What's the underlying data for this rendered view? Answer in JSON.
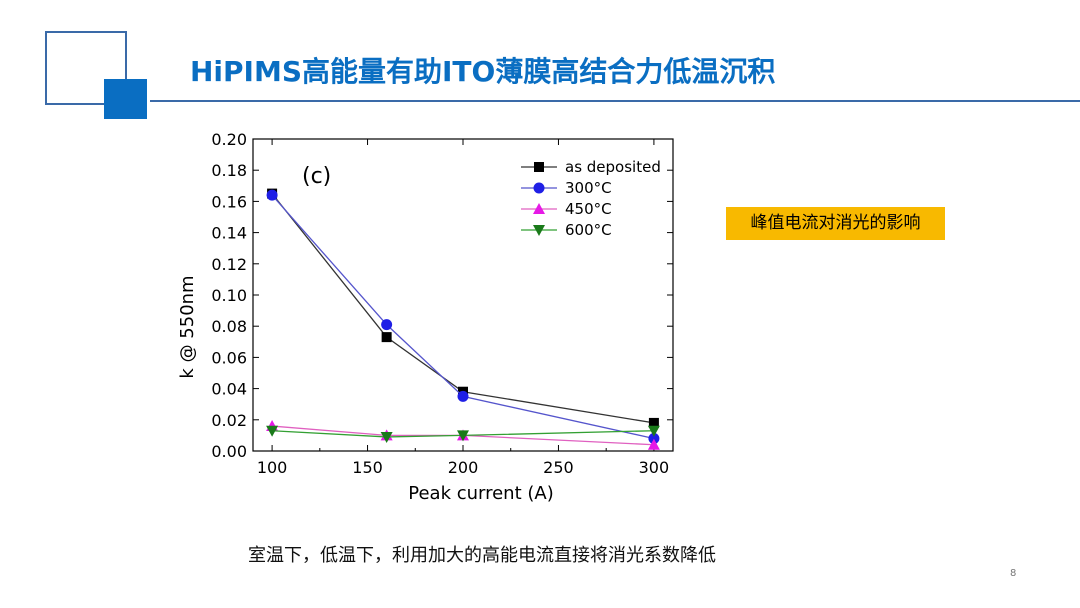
{
  "slide": {
    "title": "HiPIMS高能量有助ITO薄膜高结合力低温沉积",
    "callout": "峰值电流对消光的影响",
    "caption": "室温下，低温下，利用加大的高能电流直接将消光系数降低",
    "page_number": "8"
  },
  "colors": {
    "title_blue": "#0a6ec2",
    "callout_bg": "#f8b900"
  },
  "chart_data": {
    "type": "line",
    "panel_label": "(c)",
    "xlabel": "Peak current (A)",
    "ylabel": "k @ 550nm",
    "xlim": [
      90,
      310
    ],
    "ylim": [
      0,
      0.2
    ],
    "x_ticks": [
      100,
      150,
      200,
      250,
      300
    ],
    "y_ticks": [
      0.0,
      0.02,
      0.04,
      0.06,
      0.08,
      0.1,
      0.12,
      0.14,
      0.16,
      0.18,
      0.2
    ],
    "x": [
      100,
      160,
      200,
      300
    ],
    "legend_position": "top-right",
    "series": [
      {
        "name": "as deposited",
        "values": [
          0.165,
          0.073,
          0.038,
          0.018
        ],
        "color": "#000000",
        "line_color": "#333333",
        "marker": "square"
      },
      {
        "name": "300°C",
        "values": [
          0.164,
          0.081,
          0.035,
          0.008
        ],
        "color": "#1f1fe6",
        "line_color": "#5555cc",
        "marker": "circle"
      },
      {
        "name": "450°C",
        "values": [
          0.016,
          0.01,
          0.01,
          0.004
        ],
        "color": "#e619e6",
        "line_color": "#e060c0",
        "marker": "triangle-up"
      },
      {
        "name": "600°C",
        "values": [
          0.013,
          0.009,
          0.01,
          0.013
        ],
        "color": "#1a7a1a",
        "line_color": "#33a033",
        "marker": "triangle-down"
      }
    ]
  }
}
